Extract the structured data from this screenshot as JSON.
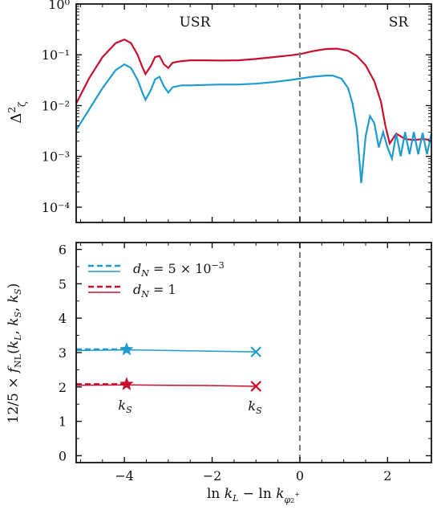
{
  "colors": {
    "blue": "#1f9bcf",
    "red": "#c8102e",
    "axis": "#111111",
    "divider": "#777777"
  },
  "chart_data": [
    {
      "type": "line",
      "id": "power-spectrum",
      "ylabel": "Δ²_ζ",
      "yscale": "log",
      "ylim": [
        5e-05,
        1.0
      ],
      "xlim": [
        -5.1,
        3.0
      ],
      "x_ticks": [
        -4,
        -2,
        0,
        2
      ],
      "y_ticks": [
        {
          "value": 1.0,
          "label": "10⁰"
        },
        {
          "value": 0.1,
          "label": "10⁻¹"
        },
        {
          "value": 0.01,
          "label": "10⁻²"
        },
        {
          "value": 0.001,
          "label": "10⁻³"
        },
        {
          "value": 0.0001,
          "label": "10⁻⁴"
        }
      ],
      "divider_x": 0,
      "region_labels": [
        {
          "text": "USR",
          "x": -2.4,
          "y": 0.5
        },
        {
          "text": "SR",
          "x": 2.25,
          "y": 0.5
        }
      ],
      "series": [
        {
          "color_key": "red",
          "points": [
            [
              -5.1,
              0.011
            ],
            [
              -4.8,
              0.035
            ],
            [
              -4.5,
              0.09
            ],
            [
              -4.2,
              0.17
            ],
            [
              -4.0,
              0.2
            ],
            [
              -3.85,
              0.17
            ],
            [
              -3.7,
              0.1
            ],
            [
              -3.6,
              0.06
            ],
            [
              -3.52,
              0.042
            ],
            [
              -3.4,
              0.06
            ],
            [
              -3.3,
              0.09
            ],
            [
              -3.2,
              0.095
            ],
            [
              -3.1,
              0.065
            ],
            [
              -3.0,
              0.055
            ],
            [
              -2.9,
              0.07
            ],
            [
              -2.7,
              0.075
            ],
            [
              -2.5,
              0.078
            ],
            [
              -2.2,
              0.078
            ],
            [
              -1.8,
              0.077
            ],
            [
              -1.4,
              0.078
            ],
            [
              -1.0,
              0.083
            ],
            [
              -0.6,
              0.09
            ],
            [
              -0.2,
              0.098
            ],
            [
              0.0,
              0.103
            ],
            [
              0.3,
              0.118
            ],
            [
              0.6,
              0.13
            ],
            [
              0.85,
              0.132
            ],
            [
              1.1,
              0.12
            ],
            [
              1.3,
              0.095
            ],
            [
              1.5,
              0.062
            ],
            [
              1.7,
              0.03
            ],
            [
              1.85,
              0.012
            ],
            [
              1.95,
              0.004
            ],
            [
              2.05,
              0.0018
            ],
            [
              2.2,
              0.0028
            ],
            [
              2.4,
              0.0022
            ],
            [
              2.6,
              0.0021
            ],
            [
              2.8,
              0.0022
            ],
            [
              3.0,
              0.0021
            ]
          ]
        },
        {
          "color_key": "blue",
          "points": [
            [
              -5.1,
              0.0033
            ],
            [
              -4.8,
              0.0085
            ],
            [
              -4.5,
              0.022
            ],
            [
              -4.2,
              0.05
            ],
            [
              -4.0,
              0.065
            ],
            [
              -3.85,
              0.055
            ],
            [
              -3.7,
              0.032
            ],
            [
              -3.6,
              0.019
            ],
            [
              -3.52,
              0.013
            ],
            [
              -3.4,
              0.02
            ],
            [
              -3.3,
              0.033
            ],
            [
              -3.2,
              0.037
            ],
            [
              -3.1,
              0.024
            ],
            [
              -3.0,
              0.018
            ],
            [
              -2.9,
              0.023
            ],
            [
              -2.7,
              0.025
            ],
            [
              -2.5,
              0.025
            ],
            [
              -2.2,
              0.0255
            ],
            [
              -1.8,
              0.026
            ],
            [
              -1.4,
              0.026
            ],
            [
              -1.0,
              0.027
            ],
            [
              -0.6,
              0.029
            ],
            [
              -0.2,
              0.032
            ],
            [
              0.0,
              0.034
            ],
            [
              0.3,
              0.037
            ],
            [
              0.6,
              0.039
            ],
            [
              0.75,
              0.039
            ],
            [
              0.95,
              0.034
            ],
            [
              1.1,
              0.022
            ],
            [
              1.2,
              0.011
            ],
            [
              1.3,
              0.0035
            ],
            [
              1.4,
              0.0003
            ],
            [
              1.5,
              0.0025
            ],
            [
              1.6,
              0.0062
            ],
            [
              1.7,
              0.0045
            ],
            [
              1.8,
              0.0015
            ],
            [
              1.9,
              0.003
            ],
            [
              2.0,
              0.0015
            ],
            [
              2.1,
              0.0009
            ],
            [
              2.2,
              0.0028
            ],
            [
              2.3,
              0.001
            ],
            [
              2.4,
              0.003
            ],
            [
              2.5,
              0.0011
            ],
            [
              2.6,
              0.003
            ],
            [
              2.7,
              0.0011
            ],
            [
              2.8,
              0.0029
            ],
            [
              2.9,
              0.0011
            ],
            [
              3.0,
              0.0028
            ]
          ]
        }
      ]
    },
    {
      "type": "line",
      "id": "fnl",
      "xlabel": "ln k_L − ln k_φ₂⁺",
      "ylabel": "12/5 × f_NL(k_L, k_S, k_S)",
      "ylim": [
        -0.2,
        6.2
      ],
      "xlim": [
        -5.1,
        3.0
      ],
      "x_ticks": [
        -4,
        -2,
        0,
        2
      ],
      "y_ticks": [
        0,
        1,
        2,
        3,
        4,
        5,
        6
      ],
      "divider_x": 0,
      "legend": {
        "placement": "top-left",
        "entries": [
          {
            "label": "d_N = 5 × 10⁻³",
            "color_key": "blue"
          },
          {
            "label": "d_N = 1",
            "color_key": "red"
          }
        ]
      },
      "series": [
        {
          "color_key": "blue",
          "dashed": [
            [
              -5.1,
              3.09
            ],
            [
              -3.95,
              3.09
            ]
          ],
          "solid": [
            [
              -5.1,
              3.06
            ],
            [
              -3.95,
              3.08
            ],
            [
              -3.0,
              3.06
            ],
            [
              -2.0,
              3.04
            ],
            [
              -1.0,
              3.02
            ]
          ],
          "star": [
            -3.95,
            3.09
          ],
          "cross": [
            -1.0,
            3.02
          ]
        },
        {
          "color_key": "red",
          "dashed": [
            [
              -5.1,
              2.08
            ],
            [
              -3.95,
              2.08
            ]
          ],
          "solid": [
            [
              -5.1,
              2.05
            ],
            [
              -3.95,
              2.06
            ],
            [
              -3.0,
              2.05
            ],
            [
              -2.0,
              2.04
            ],
            [
              -1.0,
              2.02
            ]
          ],
          "star": [
            -3.95,
            2.08
          ],
          "cross": [
            -1.0,
            2.02
          ]
        }
      ],
      "annotations": [
        {
          "text": "k_S",
          "anchor_x": -3.95,
          "anchor_y": 2.08
        },
        {
          "text": "k_S",
          "anchor_x": -1.0,
          "anchor_y": 2.02
        }
      ]
    }
  ]
}
